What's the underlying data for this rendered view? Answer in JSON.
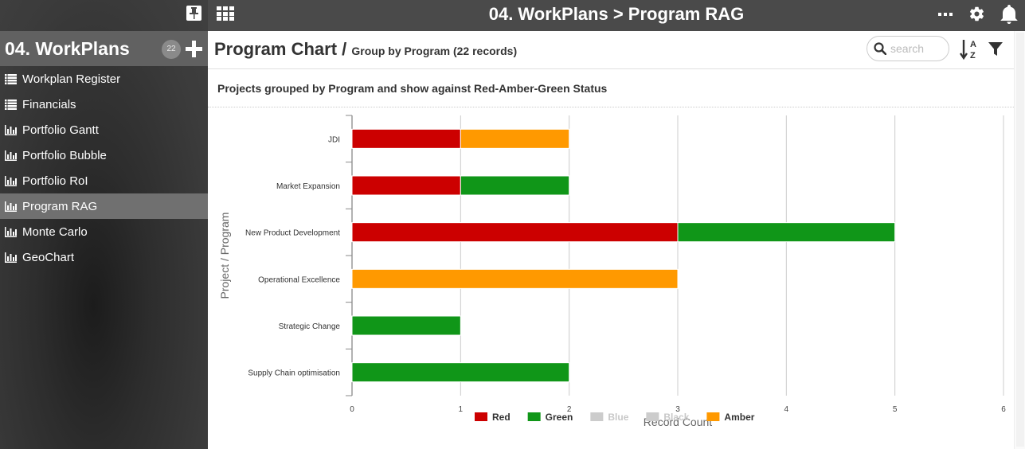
{
  "app": {
    "title": "04. WorkPlans > Program RAG"
  },
  "sidebar": {
    "title": "04. WorkPlans",
    "count": "22",
    "items": [
      {
        "label": "Workplan Register",
        "icon": "list-icon",
        "active": false
      },
      {
        "label": "Financials",
        "icon": "list-icon",
        "active": false
      },
      {
        "label": "Portfolio Gantt",
        "icon": "bar-chart-icon",
        "active": false
      },
      {
        "label": "Portfolio Bubble",
        "icon": "bar-chart-icon",
        "active": false
      },
      {
        "label": "Portfolio RoI",
        "icon": "bar-chart-icon",
        "active": false
      },
      {
        "label": "Program RAG",
        "icon": "bar-chart-icon",
        "active": true
      },
      {
        "label": "Monte Carlo",
        "icon": "bar-chart-icon",
        "active": false
      },
      {
        "label": "GeoChart",
        "icon": "bar-chart-icon",
        "active": false
      }
    ]
  },
  "header": {
    "title": "Program Chart /",
    "subtitle": "Group by Program (22 records)",
    "search_placeholder": "search"
  },
  "chart_description": "Projects grouped by Program and show against Red-Amber-Green Status",
  "colors": {
    "red": "#cc0000",
    "green": "#109618",
    "amber": "#ff9900",
    "disabled": "#cccccc"
  },
  "chart_data": {
    "type": "bar",
    "orientation": "horizontal",
    "stacked": true,
    "categories": [
      "JDI",
      "Market Expansion",
      "New Product Development",
      "Operational Excellence",
      "Strategic Change",
      "Supply Chain optimisation"
    ],
    "series": [
      {
        "name": "Red",
        "color": "#cc0000",
        "values": [
          1,
          1,
          3,
          0,
          0,
          0
        ],
        "enabled": true
      },
      {
        "name": "Green",
        "color": "#109618",
        "values": [
          0,
          1,
          2,
          0,
          1,
          2
        ],
        "enabled": true
      },
      {
        "name": "Blue",
        "color": "#cccccc",
        "values": [
          0,
          0,
          0,
          0,
          0,
          0
        ],
        "enabled": false
      },
      {
        "name": "Black",
        "color": "#cccccc",
        "values": [
          0,
          0,
          0,
          0,
          0,
          0
        ],
        "enabled": false
      },
      {
        "name": "Amber",
        "color": "#ff9900",
        "values": [
          1,
          0,
          0,
          3,
          0,
          0
        ],
        "enabled": true
      }
    ],
    "xlabel": "Record Count",
    "ylabel": "Project / Program",
    "xlim": [
      0,
      6
    ],
    "xticks": [
      "0",
      "1",
      "2",
      "3",
      "4",
      "5",
      "6"
    ],
    "grid": true,
    "legend": "bottom"
  }
}
